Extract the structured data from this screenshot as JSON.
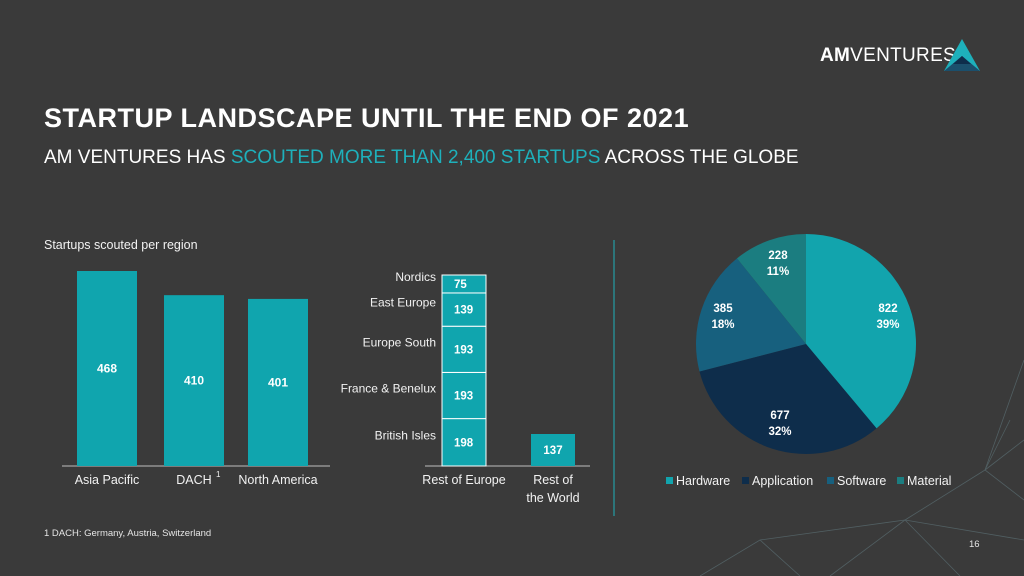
{
  "header": {
    "title": "STARTUP LANDSCAPE UNTIL THE END OF 2021",
    "subtitle_pre": "AM VENTURES HAS ",
    "subtitle_highlight": "SCOUTED MORE THAN 2,400 STARTUPS",
    "subtitle_post": " ACROSS THE GLOBE",
    "logo_bold": "AM",
    "logo_rest": "VENTURES"
  },
  "colors": {
    "background": "#3a3a3a",
    "teal": "#10a5ae",
    "hardware": "#12a4ad",
    "application": "#0e2d4b",
    "software": "#17607e",
    "material": "#1b7d80"
  },
  "footnote": "1 DACH: Germany, Austria, Switzerland",
  "page_number": "16",
  "chart_data": [
    {
      "type": "bar",
      "title": "Startups scouted per region",
      "categories": [
        "Asia Pacific",
        "DACH",
        "North America"
      ],
      "category_superscripts": [
        "",
        "1",
        ""
      ],
      "values": [
        468,
        410,
        401
      ],
      "ylim": [
        0,
        480
      ]
    },
    {
      "type": "bar",
      "stacked": true,
      "categories": [
        "Rest of Europe",
        "Rest of the World"
      ],
      "segments": [
        {
          "name": "British Isles",
          "value": 198
        },
        {
          "name": "France & Benelux",
          "value": 193
        },
        {
          "name": "Europe South",
          "value": 193
        },
        {
          "name": "East Europe",
          "value": 139
        },
        {
          "name": "Nordics",
          "value": 75
        }
      ],
      "rest_of_world": 137
    },
    {
      "type": "pie",
      "slices": [
        {
          "name": "Hardware",
          "value": 822,
          "percent": "39%",
          "color": "#12a4ad"
        },
        {
          "name": "Application",
          "value": 677,
          "percent": "32%",
          "color": "#0e2d4b"
        },
        {
          "name": "Software",
          "value": 385,
          "percent": "18%",
          "color": "#17607e"
        },
        {
          "name": "Material",
          "value": 228,
          "percent": "11%",
          "color": "#1b7d80"
        }
      ],
      "legend_position": "bottom"
    }
  ]
}
